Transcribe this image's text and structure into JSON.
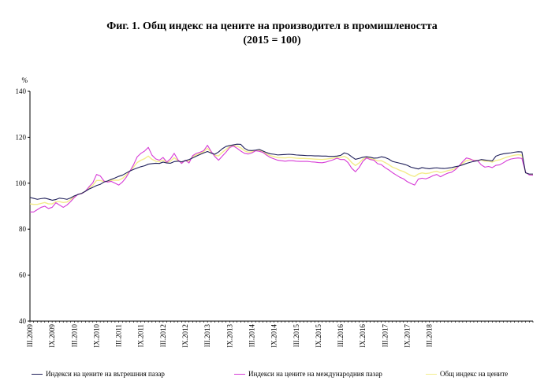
{
  "chart_data": {
    "type": "line",
    "title": "Фиг. 1. Общ индекс на цените на производител в промишлеността",
    "subtitle": "(2015 = 100)",
    "ylabel": "%",
    "ylim": [
      40,
      140
    ],
    "yticks": [
      40,
      60,
      80,
      100,
      120,
      140
    ],
    "grid": false,
    "legend": "bottom",
    "xtick_labels": [
      "III.2009",
      "IX.2009",
      "III.2010",
      "IX.2010",
      "III.2011",
      "IX.2011",
      "III.2012",
      "IX.2012",
      "III.2013",
      "IX.2013",
      "III.2014",
      "IX.2014",
      "III.2015",
      "IX.2015",
      "III.2016",
      "IX.2016",
      "III.2017",
      "IX.2017",
      "III.2018"
    ],
    "x_start": "III.2009",
    "x_end": "III.2018",
    "series": [
      {
        "name": "Индекси на цените на вътрешния пазар",
        "color": "#1f1f5a",
        "values": [
          93.8,
          93.4,
          93.0,
          93.3,
          93.5,
          93.1,
          92.6,
          92.9,
          93.5,
          93.3,
          93.0,
          93.6,
          94.5,
          95.1,
          95.6,
          96.5,
          97.5,
          98.2,
          99.0,
          99.5,
          100.5,
          101.0,
          101.7,
          102.3,
          103.0,
          103.5,
          104.4,
          105.3,
          106.0,
          106.6,
          107.2,
          107.6,
          108.3,
          108.5,
          108.7,
          108.6,
          109.2,
          108.8,
          108.7,
          109.4,
          109.6,
          109.3,
          109.8,
          110.3,
          111.0,
          111.8,
          112.5,
          113.2,
          113.8,
          113.1,
          112.6,
          113.6,
          115.0,
          116.0,
          116.4,
          116.7,
          117.0,
          116.9,
          115.2,
          114.3,
          114.2,
          114.4,
          114.7,
          114.0,
          113.3,
          112.8,
          112.6,
          112.3,
          112.4,
          112.5,
          112.6,
          112.5,
          112.3,
          112.2,
          112.1,
          112.0,
          112.0,
          111.9,
          111.9,
          111.8,
          111.8,
          111.7,
          111.7,
          111.8,
          112.1,
          113.2,
          112.7,
          111.5,
          110.4,
          110.8,
          111.3,
          111.5,
          111.3,
          110.9,
          111.0,
          111.5,
          111.2,
          110.5,
          109.5,
          109.1,
          108.7,
          108.3,
          107.8,
          107.0,
          106.6,
          106.2,
          106.8,
          106.5,
          106.3,
          106.6,
          106.7,
          106.5,
          106.4,
          106.6,
          106.8,
          107.2,
          107.5,
          108.0,
          108.6,
          109.1,
          109.5,
          109.8,
          110.3,
          110.1,
          109.9,
          109.7,
          111.8,
          112.4,
          112.8,
          113.0,
          113.2,
          113.5,
          113.7,
          113.6,
          104.5,
          104.0,
          104.0
        ]
      },
      {
        "name": "Индекси на цените на международния пазар",
        "color": "#d63bd6",
        "values": [
          87.5,
          87.5,
          88.5,
          89.5,
          90.0,
          89.0,
          89.5,
          91.5,
          90.5,
          89.5,
          90.5,
          92.0,
          93.8,
          95.2,
          95.5,
          96.5,
          98.5,
          100.2,
          103.8,
          103.2,
          101.0,
          100.5,
          100.8,
          100.0,
          99.2,
          100.5,
          102.5,
          105.2,
          108.0,
          111.5,
          113.0,
          114.0,
          115.6,
          112.2,
          110.6,
          110.0,
          111.2,
          109.2,
          110.6,
          113.0,
          110.2,
          108.6,
          110.0,
          108.8,
          112.0,
          113.0,
          113.5,
          114.2,
          116.5,
          113.8,
          111.6,
          110.0,
          111.8,
          113.5,
          115.5,
          116.2,
          115.2,
          114.0,
          113.0,
          112.7,
          113.2,
          114.1,
          113.9,
          113.4,
          112.2,
          111.2,
          110.6,
          110.0,
          109.8,
          109.6,
          109.8,
          109.8,
          109.6,
          109.5,
          109.5,
          109.5,
          109.3,
          109.2,
          109.0,
          108.9,
          109.2,
          109.7,
          110.2,
          110.9,
          110.3,
          110.3,
          109.0,
          106.5,
          105.0,
          106.8,
          109.5,
          111.0,
          110.3,
          110.0,
          108.5,
          108.1,
          106.8,
          105.8,
          104.6,
          103.6,
          102.6,
          101.9,
          100.7,
          99.9,
          99.2,
          101.8,
          102.2,
          101.9,
          102.5,
          103.3,
          103.8,
          102.8,
          103.7,
          104.4,
          104.8,
          105.9,
          107.5,
          109.4,
          111.0,
          110.6,
          109.8,
          109.9,
          108.0,
          107.0,
          107.3,
          106.8,
          107.8,
          108.0,
          108.9,
          109.9,
          110.5,
          110.8,
          111.0,
          110.8,
          104.8,
          103.6,
          103.5
        ]
      },
      {
        "name": "Общ индекс на цените",
        "color": "#f3ec8a",
        "values": [
          91.0,
          90.8,
          90.8,
          91.2,
          91.6,
          91.0,
          91.0,
          92.0,
          92.0,
          91.6,
          91.8,
          92.9,
          94.2,
          95.1,
          95.6,
          96.5,
          98.0,
          99.1,
          101.2,
          101.2,
          100.7,
          100.8,
          101.3,
          101.3,
          101.3,
          102.1,
          103.5,
          105.3,
          107.0,
          109.0,
          110.0,
          110.7,
          111.8,
          110.4,
          109.6,
          109.3,
          110.1,
          109.0,
          109.6,
          111.1,
          109.9,
          109.0,
          109.9,
          109.6,
          111.5,
          112.4,
          113.0,
          113.7,
          115.2,
          113.5,
          112.1,
          111.9,
          113.4,
          114.7,
          115.9,
          116.4,
          116.1,
          115.4,
          114.1,
          113.5,
          113.7,
          114.2,
          114.3,
          113.7,
          112.7,
          112.0,
          111.6,
          111.1,
          111.1,
          111.0,
          111.2,
          111.1,
          110.9,
          110.8,
          110.8,
          110.7,
          110.6,
          110.5,
          110.4,
          110.3,
          110.5,
          110.7,
          110.9,
          111.3,
          111.2,
          111.7,
          110.8,
          109.0,
          107.7,
          108.8,
          110.4,
          111.2,
          110.8,
          110.4,
          109.7,
          109.8,
          109.0,
          108.1,
          107.0,
          106.4,
          105.6,
          105.1,
          104.2,
          103.4,
          102.9,
          104.0,
          104.5,
          104.2,
          104.4,
          104.9,
          105.2,
          104.6,
          105.0,
          105.5,
          105.8,
          106.5,
          107.5,
          108.7,
          109.8,
          110.2,
          110.0,
          109.8,
          110.1,
          109.6,
          109.6,
          109.2,
          109.9,
          110.2,
          110.8,
          111.4,
          111.8,
          112.2,
          112.4,
          112.2,
          104.6,
          103.8,
          103.7
        ]
      }
    ]
  }
}
